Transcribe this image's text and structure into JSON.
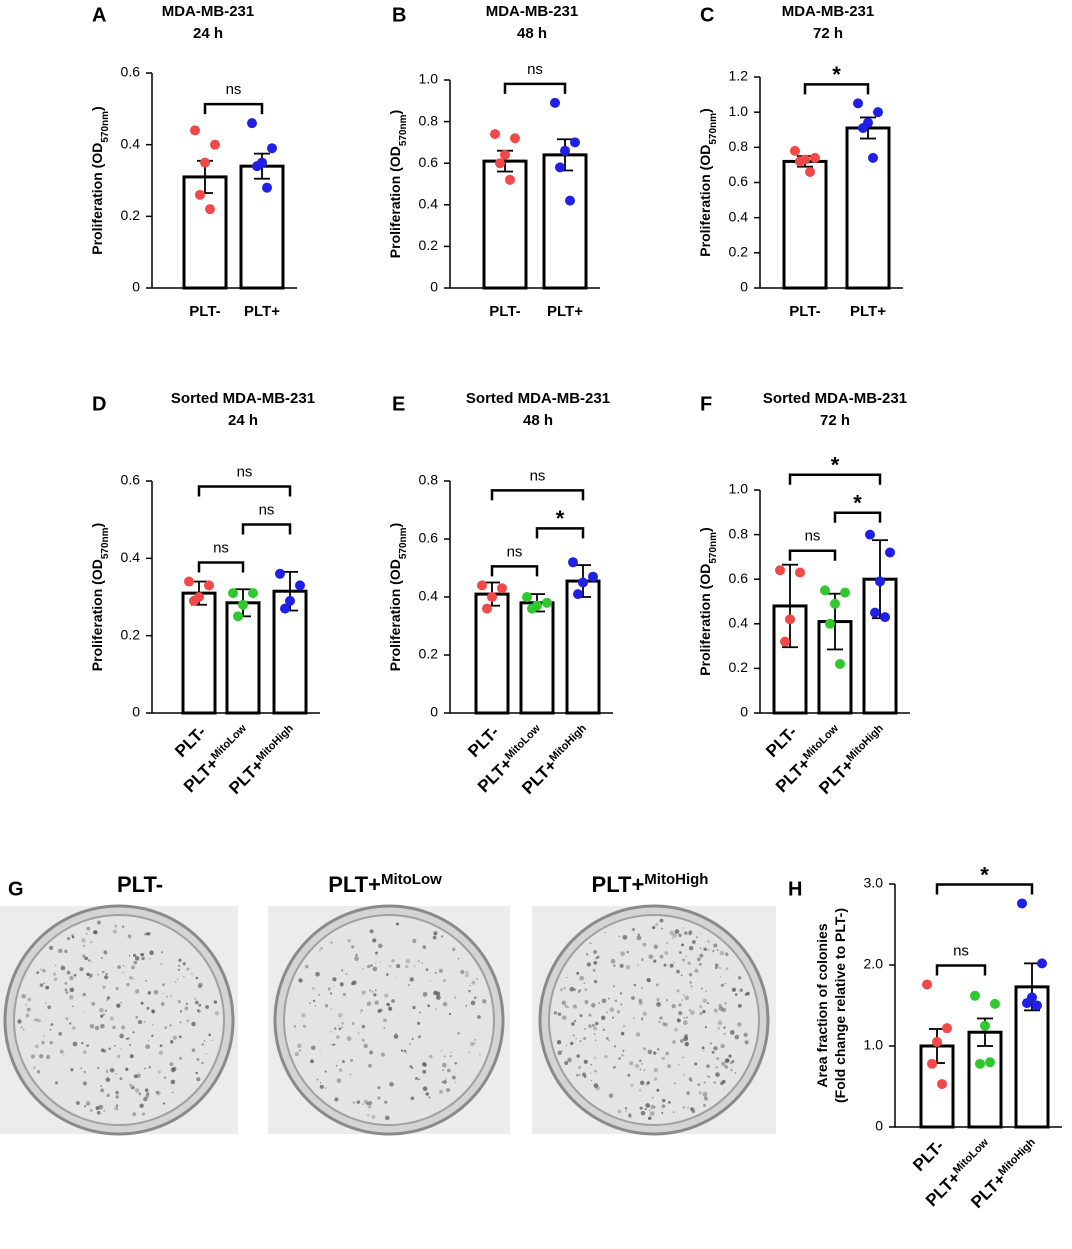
{
  "chart_data": [
    {
      "type": "bar",
      "panel": "A",
      "title": "MDA-MB-231",
      "subtitle": "24 h",
      "ylabel": "Proliferation (OD",
      "ylabel_sub": "570nm",
      "ylabel_end": ")",
      "categories": [
        "PLT-",
        "PLT+"
      ],
      "values": [
        0.31,
        0.34
      ],
      "errors": [
        0.045,
        0.035
      ],
      "points": [
        [
          0.44,
          0.4,
          0.35,
          0.26,
          0.22
        ],
        [
          0.46,
          0.39,
          0.35,
          0.34,
          0.28
        ]
      ],
      "colors": [
        "#f24848",
        "#1f1fe6"
      ],
      "ylim": [
        0,
        0.6
      ],
      "yticks": [
        0,
        0.2,
        0.4,
        0.6
      ],
      "comparisons": [
        {
          "from": 0,
          "to": 1,
          "label": "ns"
        }
      ]
    },
    {
      "type": "bar",
      "panel": "B",
      "title": "MDA-MB-231",
      "subtitle": "48 h",
      "ylabel": "Proliferation (OD",
      "ylabel_sub": "570nm",
      "ylabel_end": ")",
      "categories": [
        "PLT-",
        "PLT+"
      ],
      "values": [
        0.61,
        0.64
      ],
      "errors": [
        0.05,
        0.075
      ],
      "points": [
        [
          0.74,
          0.72,
          0.64,
          0.6,
          0.52
        ],
        [
          0.89,
          0.7,
          0.66,
          0.58,
          0.42
        ]
      ],
      "colors": [
        "#f24848",
        "#1f1fe6"
      ],
      "ylim": [
        0,
        1.0
      ],
      "yticks": [
        0,
        0.2,
        0.4,
        0.6,
        0.8,
        {
          "value": 1.0,
          "label": "1.0"
        }
      ],
      "comparisons": [
        {
          "from": 0,
          "to": 1,
          "label": "ns"
        }
      ]
    },
    {
      "type": "bar",
      "panel": "C",
      "title": "MDA-MB-231",
      "subtitle": "72 h",
      "ylabel": "Proliferation (OD",
      "ylabel_sub": "570nm",
      "ylabel_end": ")",
      "categories": [
        "PLT-",
        "PLT+"
      ],
      "values": [
        0.72,
        0.91
      ],
      "errors": [
        0.03,
        0.06
      ],
      "points": [
        [
          0.78,
          0.74,
          0.73,
          0.72,
          0.66
        ],
        [
          1.05,
          1.0,
          0.94,
          0.91,
          0.74
        ]
      ],
      "colors": [
        "#f24848",
        "#1f1fe6"
      ],
      "ylim": [
        0,
        1.2
      ],
      "yticks": [
        0,
        0.2,
        0.4,
        0.6,
        0.8,
        {
          "value": 1.0,
          "label": "1.0"
        },
        1.2
      ],
      "comparisons": [
        {
          "from": 0,
          "to": 1,
          "label": "*"
        }
      ]
    },
    {
      "type": "bar",
      "panel": "D",
      "title": "Sorted MDA-MB-231",
      "subtitle": "24 h",
      "ylabel": "Proliferation (OD",
      "ylabel_sub": "570nm",
      "ylabel_end": ")",
      "categories": [
        "PLT-",
        "PLT+",
        "PLT+"
      ],
      "category_superscripts": [
        null,
        "MitoLow",
        "MitoHigh"
      ],
      "values": [
        0.31,
        0.285,
        0.315
      ],
      "errors": [
        0.03,
        0.035,
        0.05
      ],
      "points": [
        [
          0.34,
          0.33,
          0.3,
          0.29
        ],
        [
          0.31,
          0.31,
          0.28,
          0.25
        ],
        [
          0.36,
          0.33,
          0.29,
          0.27
        ]
      ],
      "colors": [
        "#f24848",
        "#2fc82f",
        "#1f1fe6"
      ],
      "ylim": [
        0,
        0.6
      ],
      "yticks": [
        0,
        0.2,
        0.4,
        0.6
      ],
      "comparisons": [
        {
          "from": 0,
          "to": 1,
          "label": "ns"
        },
        {
          "from": 1,
          "to": 2,
          "label": "ns"
        },
        {
          "from": 0,
          "to": 2,
          "label": "ns"
        }
      ]
    },
    {
      "type": "bar",
      "panel": "E",
      "title": "Sorted MDA-MB-231",
      "subtitle": "48 h",
      "ylabel": "Proliferation (OD",
      "ylabel_sub": "570nm",
      "ylabel_end": ")",
      "categories": [
        "PLT-",
        "PLT+",
        "PLT+"
      ],
      "category_superscripts": [
        null,
        "MitoLow",
        "MitoHigh"
      ],
      "values": [
        0.41,
        0.38,
        0.455
      ],
      "errors": [
        0.04,
        0.03,
        0.055
      ],
      "points": [
        [
          0.44,
          0.43,
          0.4,
          0.36
        ],
        [
          0.4,
          0.38,
          0.37,
          0.36
        ],
        [
          0.52,
          0.47,
          0.45,
          0.41
        ]
      ],
      "colors": [
        "#f24848",
        "#2fc82f",
        "#1f1fe6"
      ],
      "ylim": [
        0,
        0.8
      ],
      "yticks": [
        0,
        0.2,
        0.4,
        0.6,
        0.8
      ],
      "comparisons": [
        {
          "from": 0,
          "to": 1,
          "label": "ns"
        },
        {
          "from": 1,
          "to": 2,
          "label": "*"
        },
        {
          "from": 0,
          "to": 2,
          "label": "ns"
        }
      ]
    },
    {
      "type": "bar",
      "panel": "F",
      "title": "Sorted MDA-MB-231",
      "subtitle": "72 h",
      "ylabel": "Proliferation (OD",
      "ylabel_sub": "570nm",
      "ylabel_end": ")",
      "categories": [
        "PLT-",
        "PLT+",
        "PLT+"
      ],
      "category_superscripts": [
        null,
        "MitoLow",
        "MitoHigh"
      ],
      "values": [
        0.48,
        0.41,
        0.6
      ],
      "errors": [
        0.185,
        0.125,
        0.175
      ],
      "points": [
        [
          0.64,
          0.63,
          0.42,
          0.32
        ],
        [
          0.55,
          0.54,
          0.49,
          0.4,
          0.22
        ],
        [
          0.8,
          0.72,
          0.59,
          0.45,
          0.43
        ]
      ],
      "colors": [
        "#f24848",
        "#2fc82f",
        "#1f1fe6"
      ],
      "ylim": [
        0,
        1.0
      ],
      "yticks": [
        0,
        0.2,
        0.4,
        0.6,
        0.8,
        {
          "value": 1.0,
          "label": "1.0"
        }
      ],
      "comparisons": [
        {
          "from": 0,
          "to": 1,
          "label": "ns"
        },
        {
          "from": 1,
          "to": 2,
          "label": "*"
        },
        {
          "from": 0,
          "to": 2,
          "label": "*"
        }
      ]
    },
    {
      "type": "bar",
      "panel": "H",
      "ylabel": "Area fraction of colonies",
      "ylabel_line2": "(Fold change relative to PLT-)",
      "categories": [
        "PLT-",
        "PLT+",
        "PLT+"
      ],
      "category_superscripts": [
        null,
        "MitoLow",
        "MitoHigh"
      ],
      "values": [
        1.0,
        1.17,
        1.73
      ],
      "errors": [
        0.21,
        0.17,
        0.29
      ],
      "points": [
        [
          1.76,
          1.22,
          1.05,
          0.78,
          0.53
        ],
        [
          1.62,
          1.52,
          1.25,
          0.78,
          0.8
        ],
        [
          2.76,
          2.02,
          1.6,
          1.53,
          1.5
        ]
      ],
      "colors": [
        "#f24848",
        "#2fc82f",
        "#1f1fe6"
      ],
      "ylim": [
        0,
        3.0
      ],
      "yticks": [
        0,
        {
          "value": 1.0,
          "label": "1.0"
        },
        {
          "value": 2.0,
          "label": "2.0"
        },
        {
          "value": 3.0,
          "label": "3.0"
        }
      ],
      "comparisons": [
        {
          "from": 0,
          "to": 1,
          "label": "ns"
        },
        {
          "from": 0,
          "to": 2,
          "label": "*"
        }
      ]
    }
  ],
  "image_panel": {
    "panel": "G",
    "plates": [
      {
        "label": "PLT-"
      },
      {
        "label": "PLT+",
        "superscript": "MitoLow"
      },
      {
        "label": "PLT+",
        "superscript": "MitoHigh"
      }
    ]
  }
}
